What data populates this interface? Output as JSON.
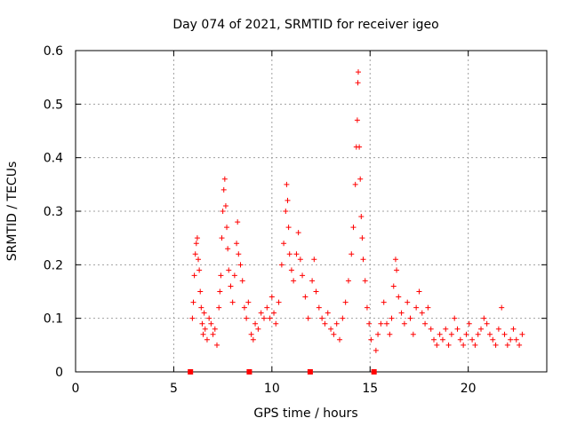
{
  "chart_data": {
    "type": "scatter",
    "title": "Day 074 of 2021, SRMTID for receiver igeo",
    "xlabel": "GPS time / hours",
    "ylabel": "SRMTID / TECUs",
    "xlim": [
      0,
      24
    ],
    "ylim": [
      0,
      0.6
    ],
    "x_ticks": [
      0,
      5,
      10,
      15,
      20
    ],
    "x_tick_labels": [
      "0",
      "5",
      "10",
      "15",
      "20"
    ],
    "y_ticks": [
      0,
      0.1,
      0.2,
      0.3,
      0.4,
      0.5,
      0.6
    ],
    "y_tick_labels": [
      "0",
      "0.1",
      "0.2",
      "0.3",
      "0.4",
      "0.5",
      "0.6"
    ],
    "grid": true,
    "marker": "+",
    "color": "#ff0000",
    "gap_markers_x": [
      5.85,
      8.85,
      11.95,
      15.2
    ],
    "series": [
      {
        "name": "SRMTID",
        "points": [
          [
            5.95,
            0.1
          ],
          [
            6.0,
            0.13
          ],
          [
            6.05,
            0.18
          ],
          [
            6.1,
            0.22
          ],
          [
            6.15,
            0.24
          ],
          [
            6.2,
            0.25
          ],
          [
            6.25,
            0.21
          ],
          [
            6.3,
            0.19
          ],
          [
            6.35,
            0.15
          ],
          [
            6.4,
            0.12
          ],
          [
            6.45,
            0.09
          ],
          [
            6.5,
            0.07
          ],
          [
            6.55,
            0.11
          ],
          [
            6.6,
            0.08
          ],
          [
            6.7,
            0.06
          ],
          [
            6.8,
            0.1
          ],
          [
            6.9,
            0.09
          ],
          [
            7.0,
            0.07
          ],
          [
            7.1,
            0.08
          ],
          [
            7.2,
            0.05
          ],
          [
            7.3,
            0.12
          ],
          [
            7.35,
            0.15
          ],
          [
            7.4,
            0.18
          ],
          [
            7.45,
            0.25
          ],
          [
            7.5,
            0.3
          ],
          [
            7.55,
            0.34
          ],
          [
            7.6,
            0.36
          ],
          [
            7.65,
            0.31
          ],
          [
            7.7,
            0.27
          ],
          [
            7.75,
            0.23
          ],
          [
            7.8,
            0.19
          ],
          [
            7.9,
            0.16
          ],
          [
            8.0,
            0.13
          ],
          [
            8.1,
            0.18
          ],
          [
            8.2,
            0.24
          ],
          [
            8.25,
            0.28
          ],
          [
            8.3,
            0.22
          ],
          [
            8.4,
            0.2
          ],
          [
            8.5,
            0.17
          ],
          [
            8.6,
            0.12
          ],
          [
            8.7,
            0.1
          ],
          [
            8.8,
            0.13
          ],
          [
            8.95,
            0.07
          ],
          [
            9.05,
            0.06
          ],
          [
            9.15,
            0.09
          ],
          [
            9.3,
            0.08
          ],
          [
            9.45,
            0.11
          ],
          [
            9.6,
            0.1
          ],
          [
            9.75,
            0.12
          ],
          [
            9.9,
            0.1
          ],
          [
            10.0,
            0.14
          ],
          [
            10.1,
            0.11
          ],
          [
            10.2,
            0.09
          ],
          [
            10.35,
            0.13
          ],
          [
            10.5,
            0.2
          ],
          [
            10.6,
            0.24
          ],
          [
            10.7,
            0.3
          ],
          [
            10.75,
            0.35
          ],
          [
            10.8,
            0.32
          ],
          [
            10.85,
            0.27
          ],
          [
            10.9,
            0.22
          ],
          [
            11.0,
            0.19
          ],
          [
            11.1,
            0.17
          ],
          [
            11.25,
            0.22
          ],
          [
            11.35,
            0.26
          ],
          [
            11.45,
            0.21
          ],
          [
            11.55,
            0.18
          ],
          [
            11.7,
            0.14
          ],
          [
            11.85,
            0.1
          ],
          [
            12.05,
            0.17
          ],
          [
            12.15,
            0.21
          ],
          [
            12.25,
            0.15
          ],
          [
            12.4,
            0.12
          ],
          [
            12.55,
            0.1
          ],
          [
            12.7,
            0.09
          ],
          [
            12.85,
            0.11
          ],
          [
            13.0,
            0.08
          ],
          [
            13.15,
            0.07
          ],
          [
            13.3,
            0.09
          ],
          [
            13.45,
            0.06
          ],
          [
            13.6,
            0.1
          ],
          [
            13.75,
            0.13
          ],
          [
            13.9,
            0.17
          ],
          [
            14.05,
            0.22
          ],
          [
            14.15,
            0.27
          ],
          [
            14.25,
            0.35
          ],
          [
            14.3,
            0.42
          ],
          [
            14.35,
            0.47
          ],
          [
            14.38,
            0.54
          ],
          [
            14.4,
            0.56
          ],
          [
            14.45,
            0.42
          ],
          [
            14.5,
            0.36
          ],
          [
            14.55,
            0.29
          ],
          [
            14.6,
            0.25
          ],
          [
            14.65,
            0.21
          ],
          [
            14.75,
            0.17
          ],
          [
            14.85,
            0.12
          ],
          [
            14.95,
            0.09
          ],
          [
            15.05,
            0.06
          ],
          [
            15.3,
            0.04
          ],
          [
            15.4,
            0.07
          ],
          [
            15.55,
            0.09
          ],
          [
            15.7,
            0.13
          ],
          [
            15.85,
            0.09
          ],
          [
            16.0,
            0.07
          ],
          [
            16.1,
            0.1
          ],
          [
            16.2,
            0.16
          ],
          [
            16.3,
            0.21
          ],
          [
            16.35,
            0.19
          ],
          [
            16.45,
            0.14
          ],
          [
            16.6,
            0.11
          ],
          [
            16.75,
            0.09
          ],
          [
            16.9,
            0.13
          ],
          [
            17.05,
            0.1
          ],
          [
            17.2,
            0.07
          ],
          [
            17.35,
            0.12
          ],
          [
            17.5,
            0.15
          ],
          [
            17.65,
            0.11
          ],
          [
            17.8,
            0.09
          ],
          [
            17.95,
            0.12
          ],
          [
            18.1,
            0.08
          ],
          [
            18.25,
            0.06
          ],
          [
            18.4,
            0.05
          ],
          [
            18.55,
            0.07
          ],
          [
            18.7,
            0.06
          ],
          [
            18.85,
            0.08
          ],
          [
            19.0,
            0.05
          ],
          [
            19.15,
            0.07
          ],
          [
            19.3,
            0.1
          ],
          [
            19.45,
            0.08
          ],
          [
            19.6,
            0.06
          ],
          [
            19.75,
            0.05
          ],
          [
            19.9,
            0.07
          ],
          [
            20.05,
            0.09
          ],
          [
            20.2,
            0.06
          ],
          [
            20.35,
            0.05
          ],
          [
            20.5,
            0.07
          ],
          [
            20.65,
            0.08
          ],
          [
            20.8,
            0.1
          ],
          [
            20.95,
            0.09
          ],
          [
            21.1,
            0.07
          ],
          [
            21.25,
            0.06
          ],
          [
            21.4,
            0.05
          ],
          [
            21.55,
            0.08
          ],
          [
            21.7,
            0.12
          ],
          [
            21.85,
            0.07
          ],
          [
            22.0,
            0.05
          ],
          [
            22.15,
            0.06
          ],
          [
            22.3,
            0.08
          ],
          [
            22.45,
            0.06
          ],
          [
            22.6,
            0.05
          ],
          [
            22.75,
            0.07
          ]
        ]
      }
    ]
  }
}
